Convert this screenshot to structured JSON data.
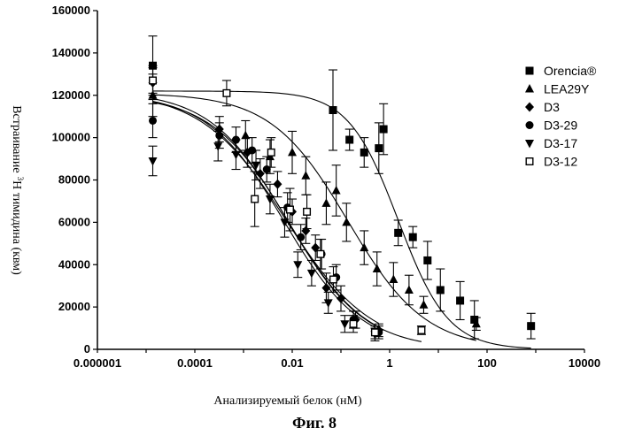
{
  "chart_data": {
    "type": "scatter",
    "xlabel": "Анализируемый белок (нМ)",
    "ylabel_main": "Встраивание",
    "ylabel_sup": "3",
    "ylabel_rest": "H тимидина (квм)",
    "caption": "Фиг. 8",
    "x_scale": "log",
    "xlim": [
      1e-06,
      10000
    ],
    "ylim": [
      0,
      160000
    ],
    "x_ticks": [
      "0.000001",
      "0.0001",
      "0.01",
      "1",
      "100",
      "10000"
    ],
    "y_ticks": [
      "0",
      "20000",
      "40000",
      "60000",
      "80000",
      "100000",
      "120000",
      "140000",
      "160000"
    ],
    "grid": false,
    "legend_position": "right",
    "series": [
      {
        "name": "Orencia®",
        "marker": "square",
        "x": [
          1.37e-05,
          0.0686,
          0.15,
          0.3,
          0.6,
          0.75,
          1.5,
          3,
          6,
          11,
          28,
          55,
          800
        ],
        "y": [
          134000,
          113000,
          99000,
          93000,
          95000,
          104000,
          55000,
          53000,
          42000,
          28000,
          23000,
          14000,
          11000
        ],
        "err": [
          14000,
          19000,
          5000,
          7000,
          12000,
          12000,
          6000,
          5000,
          9000,
          10000,
          9000,
          9000,
          6000
        ],
        "fit": {
          "top": 122000,
          "bottom": 0,
          "ec50": 1.5,
          "hill": 0.85
        }
      },
      {
        "name": "LEA29Y",
        "marker": "triangle",
        "x": [
          1.37e-05,
          0.0011,
          0.0035,
          0.01,
          0.019,
          0.05,
          0.08,
          0.13,
          0.3,
          0.55,
          1.2,
          2.5,
          5,
          60
        ],
        "y": [
          120000,
          101000,
          91000,
          93000,
          82000,
          69000,
          75000,
          60000,
          48000,
          38000,
          33000,
          28000,
          21000,
          12000
        ],
        "err": [
          10000,
          7000,
          8000,
          10000,
          9000,
          10000,
          12000,
          9000,
          8000,
          8000,
          8000,
          7000,
          4000,
          3000
        ],
        "fit": {
          "top": 121000,
          "bottom": 0,
          "ec50": 0.14,
          "hill": 0.55
        }
      },
      {
        "name": "D3",
        "marker": "diamond",
        "x": [
          1.37e-05,
          0.00032,
          0.0012,
          0.0022,
          0.005,
          0.01,
          0.019,
          0.03,
          0.05,
          0.1,
          0.2,
          0.6
        ],
        "y": [
          126000,
          104000,
          93000,
          83000,
          78000,
          65000,
          56000,
          48000,
          29000,
          24000,
          14000,
          9000
        ],
        "err": [
          8000,
          6000,
          7000,
          7000,
          6000,
          6000,
          6000,
          6000,
          7000,
          6000,
          4000,
          3000
        ],
        "fit": {
          "top": 120000,
          "bottom": 0,
          "ec50": 0.0085,
          "hill": 0.55
        }
      },
      {
        "name": "D3-29",
        "marker": "circle",
        "x": [
          1.37e-05,
          0.00032,
          0.0007,
          0.0015,
          0.003,
          0.008,
          0.015,
          0.04,
          0.08,
          0.18,
          0.6
        ],
        "y": [
          108000,
          101000,
          99000,
          94000,
          85000,
          67000,
          53000,
          45000,
          34000,
          14000,
          8000
        ],
        "err": [
          8000,
          6000,
          6000,
          6000,
          6000,
          7000,
          6000,
          7000,
          6000,
          4000,
          3000
        ],
        "fit": {
          "top": 122000,
          "bottom": 0,
          "ec50": 0.0075,
          "hill": 0.5
        }
      },
      {
        "name": "D3-17",
        "marker": "triangle-down",
        "x": [
          1.37e-05,
          0.0003,
          0.0007,
          0.0018,
          0.0035,
          0.007,
          0.013,
          0.025,
          0.055,
          0.12,
          0.5
        ],
        "y": [
          89000,
          96000,
          92000,
          87000,
          71000,
          60000,
          40000,
          36000,
          22000,
          12000,
          7000
        ],
        "err": [
          7000,
          7000,
          7000,
          7000,
          7000,
          7000,
          6000,
          6000,
          5000,
          4000,
          3000
        ],
        "fit": {
          "top": 121000,
          "bottom": 0,
          "ec50": 0.0068,
          "hill": 0.55
        }
      },
      {
        "name": "D3-12",
        "marker": "square-open",
        "x": [
          1.37e-05,
          0.00045,
          0.0017,
          0.0037,
          0.009,
          0.02,
          0.038,
          0.07,
          0.18,
          0.5,
          4.5
        ],
        "y": [
          127000,
          121000,
          71000,
          93000,
          66000,
          65000,
          45000,
          33000,
          12000,
          8000,
          9000
        ],
        "err": [
          6000,
          6000,
          13000,
          7000,
          10000,
          8000,
          7000,
          6000,
          4000,
          3000,
          2000
        ],
        "fit": {
          "top": 122000,
          "bottom": 0,
          "ec50": 0.0079,
          "hill": 0.55
        }
      }
    ]
  }
}
